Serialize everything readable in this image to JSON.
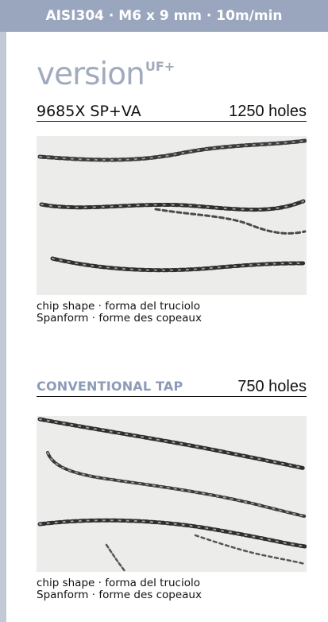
{
  "header": {
    "text": "AISI304 · M6 x 9 mm · 10m/min"
  },
  "brand": {
    "word": "version",
    "suffix": "UF+"
  },
  "sections": [
    {
      "name": "9685X SP+VA",
      "holes": "1250 holes",
      "captions": [
        "chip shape · forma del truciolo",
        "Spanform · forme des copeaux"
      ]
    },
    {
      "name": "CONVENTIONAL TAP",
      "holes": "750 holes",
      "captions": [
        "chip shape · forma del truciolo",
        "Spanform · forme des copeaux"
      ]
    }
  ],
  "colors": {
    "header_band": "#9aa6bd",
    "brand": "#a2abbd",
    "conventional_label": "#8c9bb8",
    "photo_background": "#ececeb"
  }
}
